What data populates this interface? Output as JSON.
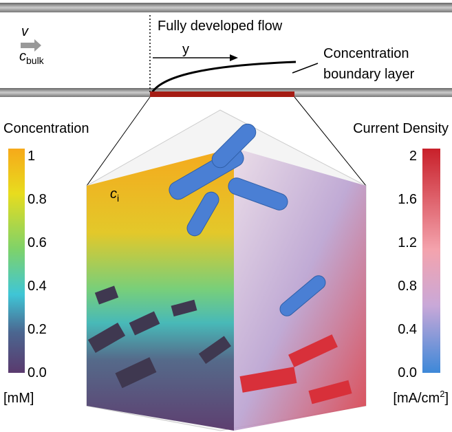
{
  "schematic": {
    "velocity": "v",
    "bulk_symbol": "c",
    "bulk_subscript": "bulk",
    "flow_label": "Fully developed flow",
    "axis_label": "y",
    "boundary_label_line1": "Concentration",
    "boundary_label_line2": "boundary layer"
  },
  "cube": {
    "symbol": "c",
    "subscript": "i"
  },
  "left_colorbar": {
    "title": "Concentration",
    "ticks": [
      "1",
      "0.8",
      "0.6",
      "0.4",
      "0.2",
      "0.0"
    ],
    "unit": "[mM]"
  },
  "right_colorbar": {
    "title": "Current Density",
    "ticks": [
      "2",
      "1.6",
      "1.2",
      "0.8",
      "0.4",
      "0.0"
    ],
    "unit_base": "[mA/cm",
    "unit_sup": "2",
    "unit_end": "]"
  }
}
